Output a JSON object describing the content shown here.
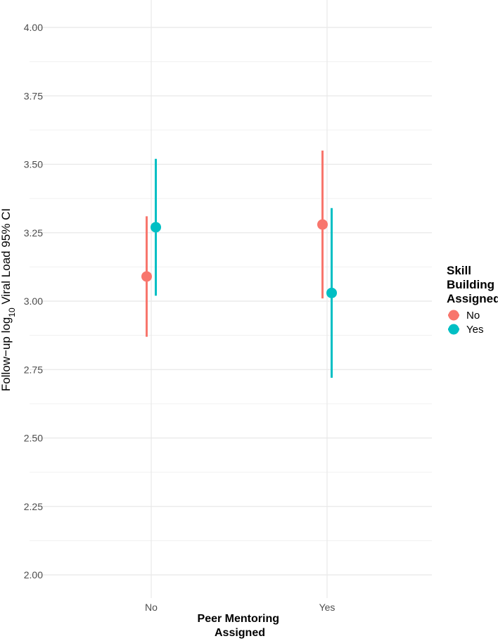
{
  "chart_data": {
    "type": "scatter",
    "subtype": "pointrange",
    "xlabel_lines": [
      "Peer Mentoring",
      "Assigned"
    ],
    "ylabel": {
      "prefix": "Follow−up log",
      "subscript": "10",
      "suffix": " Viral Load 95% CI"
    },
    "categories": [
      "No",
      "Yes"
    ],
    "ylim": [
      2.0,
      4.0
    ],
    "yticks": [
      "2.00",
      "2.25",
      "2.50",
      "2.75",
      "3.00",
      "3.25",
      "3.50",
      "3.75",
      "4.00"
    ],
    "grid": true,
    "legend": {
      "title_lines": [
        "Skill",
        "Building",
        "Assigned"
      ],
      "placement": "right"
    },
    "series": [
      {
        "name": "No",
        "color": "#F8766D",
        "points": [
          {
            "x": "No",
            "y": 3.09,
            "lower": 2.87,
            "upper": 3.31
          },
          {
            "x": "Yes",
            "y": 3.28,
            "lower": 3.01,
            "upper": 3.55
          }
        ]
      },
      {
        "name": "Yes",
        "color": "#00BFC4",
        "points": [
          {
            "x": "No",
            "y": 3.27,
            "lower": 3.02,
            "upper": 3.52
          },
          {
            "x": "Yes",
            "y": 3.03,
            "lower": 2.72,
            "upper": 3.34
          }
        ]
      }
    ]
  }
}
